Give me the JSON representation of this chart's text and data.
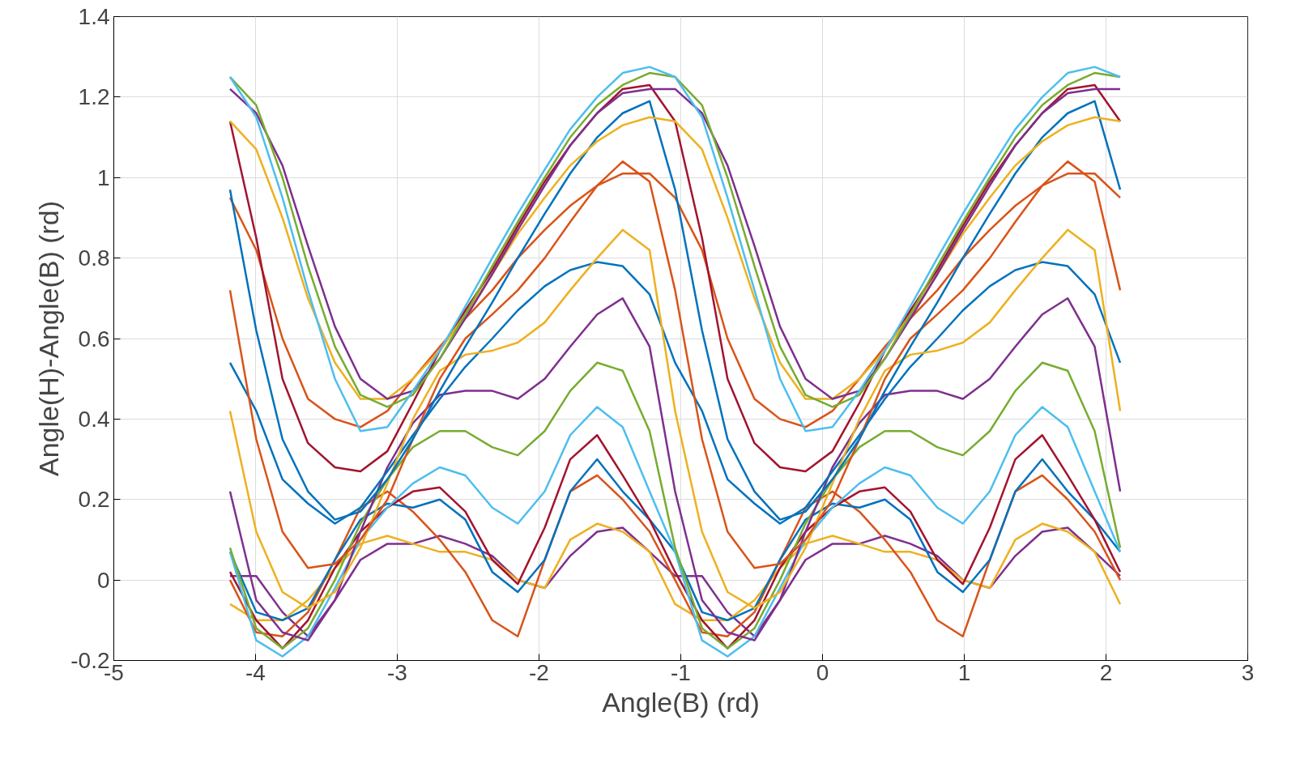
{
  "chart_data": {
    "type": "line",
    "xlabel": "Angle(B) (rd)",
    "ylabel": "Angle(H)-Angle(B) (rd)",
    "xlim": [
      -5,
      3
    ],
    "xticks": [
      -5,
      -4,
      -3,
      -2,
      -1,
      0,
      1,
      2,
      3
    ],
    "ylim": [
      -0.2,
      1.4
    ],
    "yticks": [
      -0.2,
      0,
      0.2,
      0.4,
      0.6,
      0.8,
      1,
      1.2,
      1.4
    ],
    "grid": true,
    "line_style": "solid",
    "marker": "none",
    "x": [
      -4.18,
      -3.995,
      -3.81,
      -3.63,
      -3.44,
      -3.26,
      -3.07,
      -2.89,
      -2.7,
      -2.52,
      -2.33,
      -2.15,
      -1.96,
      -1.78,
      -1.59,
      -1.41,
      -1.22,
      -1.04,
      -0.85,
      -0.67,
      -0.48,
      -0.3,
      -0.12,
      0.07,
      0.26,
      0.44,
      0.62,
      0.81,
      0.99,
      1.18,
      1.36,
      1.55,
      1.73,
      1.92,
      2.1
    ],
    "series": [
      {
        "color": "#4dbeee",
        "values": [
          1.25,
          1.15,
          0.95,
          0.72,
          0.5,
          0.37,
          0.38,
          0.47,
          0.57,
          0.68,
          0.8,
          0.91,
          1.02,
          1.12,
          1.2,
          1.26,
          1.275,
          1.25,
          1.15,
          0.95,
          0.72,
          0.5,
          0.37,
          0.38,
          0.47,
          0.57,
          0.68,
          0.8,
          0.91,
          1.02,
          1.12,
          1.2,
          1.26,
          1.275,
          1.25
        ]
      },
      {
        "color": "#77ac30",
        "values": [
          1.25,
          1.18,
          1.0,
          0.78,
          0.58,
          0.46,
          0.43,
          0.46,
          0.55,
          0.66,
          0.78,
          0.89,
          1.0,
          1.1,
          1.18,
          1.23,
          1.26,
          1.25,
          1.18,
          1.0,
          0.78,
          0.58,
          0.46,
          0.43,
          0.46,
          0.55,
          0.66,
          0.78,
          0.89,
          1.0,
          1.1,
          1.18,
          1.23,
          1.26,
          1.25
        ]
      },
      {
        "color": "#7e2f8e",
        "values": [
          1.22,
          1.16,
          1.03,
          0.83,
          0.63,
          0.5,
          0.45,
          0.47,
          0.55,
          0.65,
          0.76,
          0.87,
          0.98,
          1.08,
          1.16,
          1.21,
          1.22,
          1.22,
          1.16,
          1.03,
          0.83,
          0.63,
          0.5,
          0.45,
          0.47,
          0.55,
          0.65,
          0.76,
          0.87,
          0.98,
          1.08,
          1.16,
          1.21,
          1.22,
          1.22
        ]
      },
      {
        "color": "#edb120",
        "values": [
          1.14,
          1.07,
          0.9,
          0.7,
          0.54,
          0.45,
          0.45,
          0.5,
          0.57,
          0.66,
          0.76,
          0.86,
          0.95,
          1.03,
          1.09,
          1.13,
          1.15,
          1.14,
          1.07,
          0.9,
          0.7,
          0.54,
          0.45,
          0.45,
          0.5,
          0.57,
          0.66,
          0.76,
          0.86,
          0.95,
          1.03,
          1.09,
          1.13,
          1.15,
          1.14
        ]
      },
      {
        "color": "#a2142f",
        "values": [
          1.14,
          0.85,
          0.5,
          0.34,
          0.28,
          0.27,
          0.32,
          0.44,
          0.57,
          0.67,
          0.77,
          0.88,
          0.99,
          1.08,
          1.16,
          1.22,
          1.23,
          1.14,
          0.85,
          0.5,
          0.34,
          0.28,
          0.27,
          0.32,
          0.44,
          0.57,
          0.67,
          0.77,
          0.88,
          0.99,
          1.08,
          1.16,
          1.22,
          1.23,
          1.14
        ]
      },
      {
        "color": "#0072bd",
        "values": [
          0.97,
          0.62,
          0.35,
          0.22,
          0.15,
          0.17,
          0.25,
          0.35,
          0.47,
          0.58,
          0.69,
          0.8,
          0.91,
          1.01,
          1.1,
          1.16,
          1.19,
          0.97,
          0.62,
          0.35,
          0.22,
          0.15,
          0.17,
          0.25,
          0.35,
          0.47,
          0.58,
          0.69,
          0.8,
          0.91,
          1.01,
          1.1,
          1.16,
          1.19,
          0.97
        ]
      },
      {
        "color": "#d95319",
        "values": [
          0.95,
          0.82,
          0.6,
          0.45,
          0.4,
          0.38,
          0.42,
          0.5,
          0.58,
          0.65,
          0.72,
          0.8,
          0.87,
          0.93,
          0.98,
          1.01,
          1.01,
          0.95,
          0.82,
          0.6,
          0.45,
          0.4,
          0.38,
          0.42,
          0.5,
          0.58,
          0.65,
          0.72,
          0.8,
          0.87,
          0.93,
          0.98,
          1.01,
          1.01,
          0.95
        ]
      },
      {
        "color": "#d95319",
        "values": [
          0.72,
          0.35,
          0.12,
          0.03,
          0.04,
          0.1,
          0.2,
          0.35,
          0.5,
          0.6,
          0.66,
          0.72,
          0.8,
          0.89,
          0.98,
          1.04,
          0.99,
          0.72,
          0.35,
          0.12,
          0.03,
          0.04,
          0.1,
          0.2,
          0.35,
          0.5,
          0.6,
          0.66,
          0.72,
          0.8,
          0.89,
          0.98,
          1.04,
          0.99,
          0.72
        ]
      },
      {
        "color": "#edb120",
        "values": [
          0.42,
          0.12,
          -0.03,
          -0.07,
          -0.03,
          0.08,
          0.24,
          0.4,
          0.52,
          0.56,
          0.57,
          0.59,
          0.64,
          0.72,
          0.8,
          0.87,
          0.82,
          0.42,
          0.12,
          -0.03,
          -0.07,
          -0.03,
          0.08,
          0.24,
          0.4,
          0.52,
          0.56,
          0.57,
          0.59,
          0.64,
          0.72,
          0.8,
          0.87,
          0.82,
          0.42
        ]
      },
      {
        "color": "#0072bd",
        "values": [
          0.54,
          0.42,
          0.25,
          0.19,
          0.14,
          0.18,
          0.27,
          0.36,
          0.45,
          0.53,
          0.6,
          0.67,
          0.73,
          0.77,
          0.79,
          0.78,
          0.71,
          0.54,
          0.42,
          0.25,
          0.19,
          0.14,
          0.18,
          0.27,
          0.36,
          0.45,
          0.53,
          0.6,
          0.67,
          0.73,
          0.77,
          0.79,
          0.78,
          0.71,
          0.54
        ]
      },
      {
        "color": "#7e2f8e",
        "values": [
          0.22,
          -0.05,
          -0.13,
          -0.15,
          -0.05,
          0.12,
          0.28,
          0.39,
          0.46,
          0.47,
          0.47,
          0.45,
          0.5,
          0.58,
          0.66,
          0.7,
          0.58,
          0.22,
          -0.05,
          -0.13,
          -0.15,
          -0.05,
          0.12,
          0.28,
          0.39,
          0.46,
          0.47,
          0.47,
          0.45,
          0.5,
          0.58,
          0.66,
          0.7,
          0.58,
          0.22
        ]
      },
      {
        "color": "#77ac30",
        "values": [
          0.08,
          -0.12,
          -0.17,
          -0.12,
          0.0,
          0.14,
          0.25,
          0.33,
          0.37,
          0.37,
          0.33,
          0.31,
          0.37,
          0.47,
          0.54,
          0.52,
          0.37,
          0.08,
          -0.12,
          -0.17,
          -0.12,
          0.0,
          0.14,
          0.25,
          0.33,
          0.37,
          0.37,
          0.33,
          0.31,
          0.37,
          0.47,
          0.54,
          0.52,
          0.37,
          0.08
        ]
      },
      {
        "color": "#4dbeee",
        "values": [
          0.07,
          -0.15,
          -0.19,
          -0.14,
          -0.02,
          0.1,
          0.18,
          0.24,
          0.28,
          0.26,
          0.18,
          0.14,
          0.22,
          0.36,
          0.43,
          0.38,
          0.22,
          0.07,
          -0.15,
          -0.19,
          -0.14,
          -0.02,
          0.1,
          0.18,
          0.24,
          0.28,
          0.26,
          0.18,
          0.14,
          0.22,
          0.36,
          0.43,
          0.38,
          0.22,
          0.07
        ]
      },
      {
        "color": "#a2142f",
        "values": [
          0.02,
          -0.1,
          -0.17,
          -0.1,
          0.03,
          0.12,
          0.18,
          0.22,
          0.23,
          0.17,
          0.05,
          -0.01,
          0.13,
          0.3,
          0.36,
          0.26,
          0.15,
          0.02,
          -0.1,
          -0.17,
          -0.1,
          0.03,
          0.12,
          0.18,
          0.22,
          0.23,
          0.17,
          0.05,
          -0.01,
          0.13,
          0.3,
          0.36,
          0.26,
          0.15,
          0.02
        ]
      },
      {
        "color": "#0072bd",
        "values": [
          0.07,
          -0.08,
          -0.1,
          -0.07,
          0.05,
          0.15,
          0.19,
          0.18,
          0.2,
          0.15,
          0.02,
          -0.03,
          0.05,
          0.22,
          0.3,
          0.22,
          0.15,
          0.07,
          -0.08,
          -0.1,
          -0.07,
          0.05,
          0.15,
          0.19,
          0.18,
          0.2,
          0.15,
          0.02,
          -0.03,
          0.05,
          0.22,
          0.3,
          0.22,
          0.15,
          0.07
        ]
      },
      {
        "color": "#d95319",
        "values": [
          0.0,
          -0.13,
          -0.14,
          -0.08,
          0.05,
          0.18,
          0.22,
          0.17,
          0.1,
          0.02,
          -0.1,
          -0.14,
          0.05,
          0.22,
          0.26,
          0.2,
          0.12,
          0.0,
          -0.13,
          -0.14,
          -0.08,
          0.05,
          0.18,
          0.22,
          0.17,
          0.1,
          0.02,
          -0.1,
          -0.14,
          0.05,
          0.22,
          0.26,
          0.2,
          0.12,
          0.0
        ]
      },
      {
        "color": "#edb120",
        "values": [
          -0.06,
          -0.1,
          -0.1,
          -0.05,
          0.03,
          0.09,
          0.11,
          0.09,
          0.07,
          0.07,
          0.05,
          0.0,
          -0.02,
          0.1,
          0.14,
          0.12,
          0.07,
          -0.06,
          -0.1,
          -0.1,
          -0.05,
          0.03,
          0.09,
          0.11,
          0.09,
          0.07,
          0.07,
          0.05,
          0.0,
          -0.02,
          0.1,
          0.14,
          0.12,
          0.07,
          -0.06
        ]
      },
      {
        "color": "#7e2f8e",
        "values": [
          0.01,
          0.01,
          -0.08,
          -0.14,
          -0.05,
          0.05,
          0.09,
          0.09,
          0.11,
          0.09,
          0.06,
          0.0,
          -0.02,
          0.06,
          0.12,
          0.13,
          0.07,
          0.01,
          0.01,
          -0.08,
          -0.14,
          -0.05,
          0.05,
          0.09,
          0.09,
          0.11,
          0.09,
          0.06,
          0.0,
          -0.02,
          0.06,
          0.12,
          0.13,
          0.07,
          0.01
        ]
      }
    ]
  }
}
